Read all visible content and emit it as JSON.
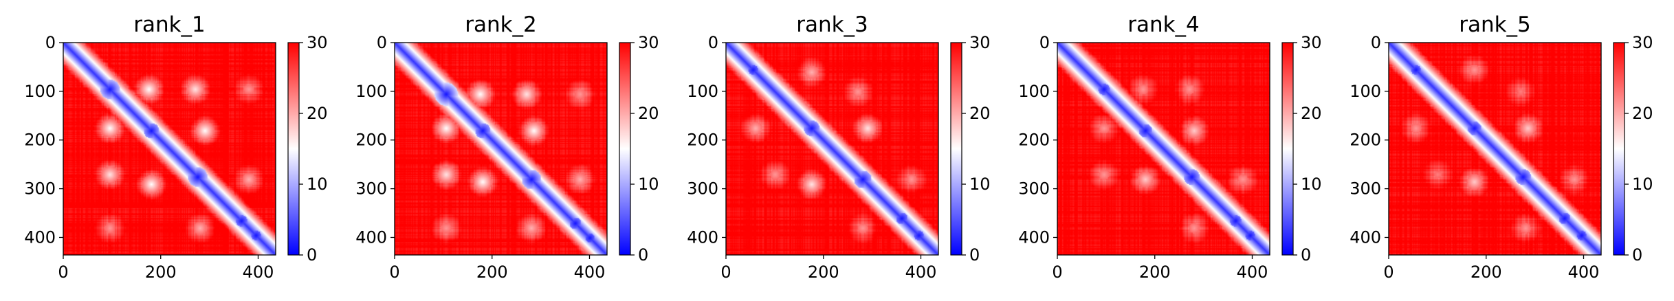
{
  "chart_data": [
    {
      "type": "heatmap",
      "title": "rank_1",
      "xlim": [
        0,
        436
      ],
      "ylim": [
        436,
        0
      ],
      "xticks": [
        0,
        200,
        400
      ],
      "yticks": [
        0,
        100,
        200,
        300,
        400
      ],
      "colorbar": {
        "range": [
          0,
          30
        ],
        "ticks": [
          0,
          10,
          20,
          30
        ],
        "colors": [
          "#0000ff",
          "#ffffff",
          "#ff0000"
        ]
      },
      "diagonal_blocks": [
        [
          95,
          20
        ],
        [
          180,
          16
        ],
        [
          275,
          20
        ],
        [
          365,
          12
        ],
        [
          395,
          10
        ]
      ],
      "off_diagonal_contacts": [
        [
          95,
          175,
          0.5
        ],
        [
          95,
          270,
          0.45
        ],
        [
          180,
          290,
          0.5
        ],
        [
          95,
          380,
          0.3
        ],
        [
          280,
          380,
          0.35
        ]
      ]
    },
    {
      "type": "heatmap",
      "title": "rank_2",
      "xlim": [
        0,
        436
      ],
      "ylim": [
        436,
        0
      ],
      "xticks": [
        0,
        200,
        400
      ],
      "yticks": [
        0,
        100,
        200,
        300,
        400
      ],
      "colorbar": {
        "range": [
          0,
          30
        ],
        "ticks": [
          0,
          10,
          20,
          30
        ],
        "colors": [
          "#0000ff",
          "#ffffff",
          "#ff0000"
        ]
      },
      "diagonal_blocks": [
        [
          105,
          24
        ],
        [
          180,
          16
        ],
        [
          280,
          20
        ],
        [
          370,
          12
        ],
        [
          400,
          10
        ]
      ],
      "off_diagonal_contacts": [
        [
          105,
          175,
          0.5
        ],
        [
          105,
          270,
          0.45
        ],
        [
          180,
          285,
          0.5
        ],
        [
          105,
          380,
          0.3
        ],
        [
          280,
          380,
          0.35
        ]
      ]
    },
    {
      "type": "heatmap",
      "title": "rank_3",
      "xlim": [
        0,
        436
      ],
      "ylim": [
        436,
        0
      ],
      "xticks": [
        0,
        200,
        400
      ],
      "yticks": [
        0,
        100,
        200,
        300,
        400
      ],
      "colorbar": {
        "range": [
          0,
          30
        ],
        "ticks": [
          0,
          10,
          20,
          30
        ],
        "colors": [
          "#0000ff",
          "#ffffff",
          "#ff0000"
        ]
      },
      "diagonal_blocks": [
        [
          55,
          10
        ],
        [
          175,
          16
        ],
        [
          280,
          18
        ],
        [
          360,
          12
        ],
        [
          395,
          10
        ]
      ],
      "off_diagonal_contacts": [
        [
          60,
          175,
          0.35
        ],
        [
          175,
          290,
          0.45
        ],
        [
          100,
          270,
          0.3
        ],
        [
          280,
          380,
          0.3
        ]
      ]
    },
    {
      "type": "heatmap",
      "title": "rank_4",
      "xlim": [
        0,
        436
      ],
      "ylim": [
        436,
        0
      ],
      "xticks": [
        0,
        200,
        400
      ],
      "yticks": [
        0,
        100,
        200,
        300,
        400
      ],
      "colorbar": {
        "range": [
          0,
          30
        ],
        "ticks": [
          0,
          10,
          20,
          30
        ],
        "colors": [
          "#0000ff",
          "#ffffff",
          "#ff0000"
        ]
      },
      "diagonal_blocks": [
        [
          95,
          12
        ],
        [
          180,
          14
        ],
        [
          275,
          16
        ],
        [
          365,
          12
        ],
        [
          395,
          10
        ]
      ],
      "off_diagonal_contacts": [
        [
          95,
          175,
          0.3
        ],
        [
          180,
          280,
          0.4
        ],
        [
          95,
          270,
          0.3
        ],
        [
          280,
          380,
          0.3
        ]
      ]
    },
    {
      "type": "heatmap",
      "title": "rank_5",
      "xlim": [
        0,
        436
      ],
      "ylim": [
        436,
        0
      ],
      "xticks": [
        0,
        200,
        400
      ],
      "yticks": [
        0,
        100,
        200,
        300,
        400
      ],
      "colorbar": {
        "range": [
          0,
          30
        ],
        "ticks": [
          0,
          10,
          20,
          30
        ],
        "colors": [
          "#0000ff",
          "#ffffff",
          "#ff0000"
        ]
      },
      "diagonal_blocks": [
        [
          55,
          10
        ],
        [
          175,
          14
        ],
        [
          275,
          16
        ],
        [
          360,
          12
        ],
        [
          395,
          10
        ]
      ],
      "off_diagonal_contacts": [
        [
          55,
          175,
          0.3
        ],
        [
          175,
          285,
          0.4
        ],
        [
          100,
          270,
          0.25
        ],
        [
          280,
          380,
          0.3
        ]
      ]
    }
  ]
}
